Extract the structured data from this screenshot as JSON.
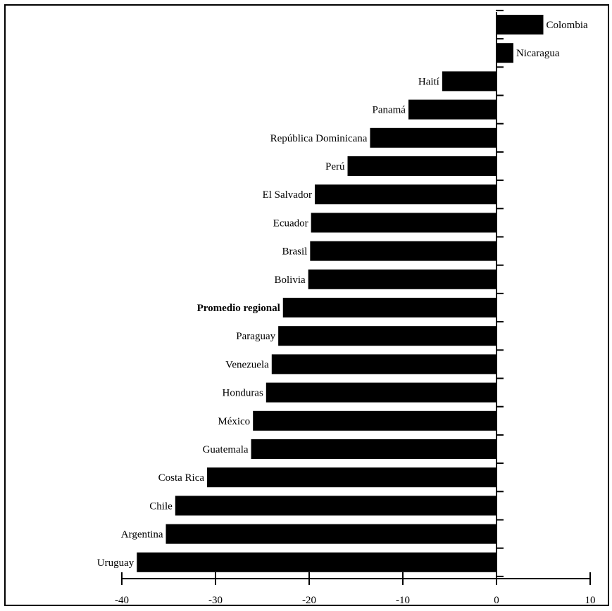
{
  "chart_data": {
    "type": "bar",
    "orientation": "horizontal",
    "title": "",
    "xlabel": "",
    "ylabel": "",
    "xlim": [
      -40,
      10
    ],
    "xticks": [
      -40,
      -30,
      -20,
      -10,
      0,
      10
    ],
    "grid": false,
    "legend": "none",
    "bar_color": "#000000",
    "categories": [
      "Colombia",
      "Nicaragua",
      "Haití",
      "Panamá",
      "República Dominicana",
      "Perú",
      "El Salvador",
      "Ecuador",
      "Brasil",
      "Bolivia",
      "Promedio regional",
      "Paraguay",
      "Venezuela",
      "Honduras",
      "México",
      "Guatemala",
      "Costa Rica",
      "Chile",
      "Argentina",
      "Uruguay"
    ],
    "values": [
      5.0,
      1.8,
      -5.8,
      -9.4,
      -13.5,
      -15.9,
      -19.4,
      -19.8,
      -19.9,
      -20.1,
      -22.8,
      -23.3,
      -24.0,
      -24.6,
      -26.0,
      -26.2,
      -30.9,
      -34.3,
      -35.3,
      -38.4
    ]
  }
}
